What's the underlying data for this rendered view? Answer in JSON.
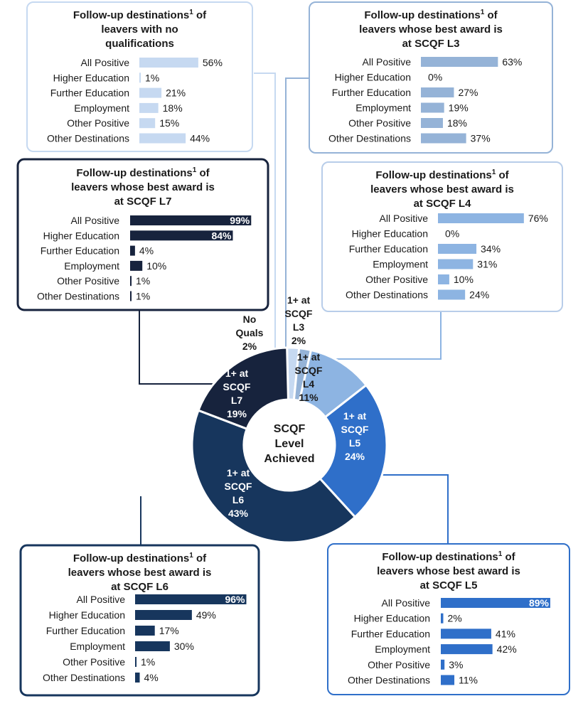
{
  "chart_data": [
    {
      "type": "pie",
      "variant": "donut",
      "center_label": [
        "SCQF",
        "Level",
        "Achieved"
      ],
      "categories": [
        "No Quals",
        "1+ at SCQF L3",
        "1+ at SCQF L4",
        "1+ at SCQF L5",
        "1+ at SCQF L6",
        "1+ at SCQF L7"
      ],
      "values": [
        2,
        2,
        11,
        24,
        43,
        19
      ],
      "value_labels": [
        "2%",
        "2%",
        "11%",
        "24%",
        "43%",
        "19%"
      ],
      "slice_labels": [
        [
          "No",
          "Quals",
          "2%"
        ],
        [
          "1+ at",
          "SCQF",
          "L3",
          "2%"
        ],
        [
          "1+ at",
          "SCQF",
          "L4",
          "11%"
        ],
        [
          "1+ at",
          "SCQF",
          "L5",
          "24%"
        ],
        [
          "1+ at",
          "SCQF",
          "L6",
          "43%"
        ],
        [
          "1+ at",
          "SCQF",
          "L7",
          "19%"
        ]
      ],
      "colors": [
        "#c6d9f1",
        "#95b3d7",
        "#8db4e2",
        "#2f6fc9",
        "#17365d",
        "#17233d"
      ]
    },
    {
      "type": "bar",
      "orientation": "horizontal",
      "panel": "noquals",
      "title_lines": [
        "Follow-up destinations",
        "of",
        "leavers with no",
        "qualifications"
      ],
      "categories": [
        "All Positive",
        "Higher Education",
        "Further Education",
        "Employment",
        "Other Positive",
        "Other Destinations"
      ],
      "values": [
        56,
        1,
        21,
        18,
        15,
        44
      ],
      "labels": [
        "56%",
        "1%",
        "21%",
        "18%",
        "15%",
        "44%"
      ],
      "color": "#c6d9f1"
    },
    {
      "type": "bar",
      "orientation": "horizontal",
      "panel": "l3",
      "title_lines": [
        "Follow-up destinations",
        "of",
        "leavers whose best award is",
        "at SCQF L3"
      ],
      "categories": [
        "All Positive",
        "Higher Education",
        "Further Education",
        "Employment",
        "Other Positive",
        "Other Destinations"
      ],
      "values": [
        63,
        0,
        27,
        19,
        18,
        37
      ],
      "labels": [
        "63%",
        "0%",
        "27%",
        "19%",
        "18%",
        "37%"
      ],
      "color": "#95b3d7"
    },
    {
      "type": "bar",
      "orientation": "horizontal",
      "panel": "l4",
      "title_lines": [
        "Follow-up destinations",
        "of",
        "leavers whose best award is",
        "at SCQF L4"
      ],
      "categories": [
        "All Positive",
        "Higher Education",
        "Further Education",
        "Employment",
        "Other Positive",
        "Other Destinations"
      ],
      "values": [
        76,
        0,
        34,
        31,
        10,
        24
      ],
      "labels": [
        "76%",
        "0%",
        "34%",
        "31%",
        "10%",
        "24%"
      ],
      "color": "#8db4e2"
    },
    {
      "type": "bar",
      "orientation": "horizontal",
      "panel": "l7",
      "title_lines": [
        "Follow-up destinations",
        "of",
        "leavers whose best award is",
        "at SCQF L7"
      ],
      "categories": [
        "All Positive",
        "Higher Education",
        "Further Education",
        "Employment",
        "Other Positive",
        "Other Destinations"
      ],
      "values": [
        99,
        84,
        4,
        10,
        1,
        1
      ],
      "labels": [
        "99%",
        "84%",
        "4%",
        "10%",
        "1%",
        "1%"
      ],
      "color": "#17233d"
    },
    {
      "type": "bar",
      "orientation": "horizontal",
      "panel": "l6",
      "title_lines": [
        "Follow-up destinations",
        "of",
        "leavers whose best award is",
        "at SCQF L6"
      ],
      "categories": [
        "All Positive",
        "Higher Education",
        "Further Education",
        "Employment",
        "Other Positive",
        "Other Destinations"
      ],
      "values": [
        96,
        49,
        17,
        30,
        1,
        4
      ],
      "labels": [
        "96%",
        "49%",
        "17%",
        "30%",
        "1%",
        "4%"
      ],
      "color": "#17365d"
    },
    {
      "type": "bar",
      "orientation": "horizontal",
      "panel": "l5",
      "title_lines": [
        "Follow-up destinations",
        "of",
        "leavers whose best award is",
        "at SCQF L5"
      ],
      "categories": [
        "All Positive",
        "Higher Education",
        "Further Education",
        "Employment",
        "Other Positive",
        "Other Destinations"
      ],
      "values": [
        89,
        2,
        41,
        42,
        3,
        11
      ],
      "labels": [
        "89%",
        "2%",
        "41%",
        "42%",
        "3%",
        "11%"
      ],
      "color": "#2f6fc9"
    }
  ],
  "footnote_marker": "1"
}
